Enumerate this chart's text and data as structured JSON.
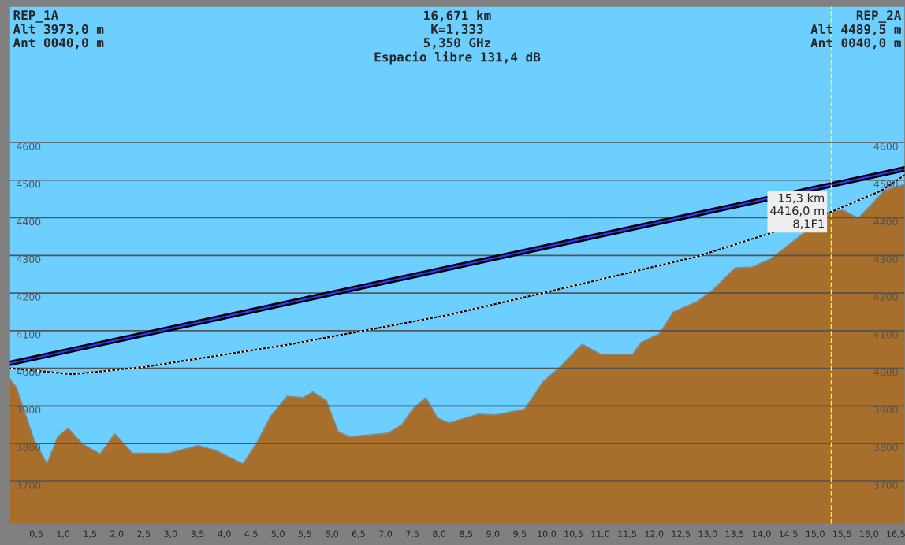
{
  "chart_data": {
    "type": "area",
    "annotations": [
      "REP_1A\nAlt 3973,0 m\nAnt 0040,0 m",
      "16,671 km\nK=1,333\n5,350 GHz\nEspacio libre 131,4 dB",
      "REP_2A\nAlt 4489,5 m\nAnt 0040,0 m",
      {
        "text": "15,3 km\n4416,0 m\n8,1F1",
        "x": 15.3,
        "y": 4416
      }
    ],
    "series": [
      {
        "color": "#a86e2c",
        "x": [
          0,
          0.13,
          0.46,
          0.7,
          0.9,
          1.09,
          1.36,
          1.69,
          1.96,
          2.29,
          2.97,
          3.51,
          3.83,
          4.35,
          4.6,
          4.86,
          5.17,
          5.46,
          5.65,
          5.9,
          6.12,
          6.33,
          7.05,
          7.31,
          7.53,
          7.75,
          7.97,
          8.18,
          8.72,
          9.05,
          9.59,
          9.93,
          10.25,
          10.66,
          11.01,
          11.6,
          11.76,
          12.1,
          12.36,
          12.8,
          13.07,
          13.51,
          13.83,
          14.16,
          15.3,
          15.52,
          15.8,
          16.06,
          16.28,
          16.67
        ],
        "values": [
          3973,
          3949,
          3809,
          3746,
          3818,
          3841,
          3799,
          3772,
          3826,
          3774,
          3774,
          3795,
          3782,
          3746,
          3801,
          3872,
          3926,
          3922,
          3937,
          3914,
          3832,
          3818,
          3828,
          3851,
          3895,
          3922,
          3868,
          3855,
          3878,
          3876,
          3891,
          3964,
          4004,
          4064,
          4037,
          4037,
          4069,
          4092,
          4150,
          4177,
          4205,
          4267,
          4269,
          4290,
          4416,
          4420,
          4399,
          4437,
          4472,
          4489
        ]
      },
      {
        "type": "line",
        "color": "#3333ff",
        "x": [
          0,
          16.671
        ],
        "values": [
          4013,
          4530
        ]
      },
      {
        "type": "line",
        "color": "#ffffff",
        "line_style": "dotted",
        "x": [
          0.03,
          1.17,
          2.53,
          5.24,
          8.18,
          9.81,
          12.8,
          14.16,
          15.27,
          16.23,
          16.67
        ],
        "values": [
          4000,
          3984,
          4004,
          4064,
          4142,
          4196,
          4297,
          4359,
          4414,
          4472,
          4514
        ]
      }
    ],
    "ref_lines": [
      {
        "axis": "x",
        "value": 15.3,
        "color": "#ffff00",
        "line_style": "dashed"
      }
    ],
    "xlim": [
      0,
      16.671
    ],
    "ylim": [
      3587,
      4962
    ],
    "y2lim": [
      3587,
      4962
    ],
    "xticks": [
      {
        "value": 0.5,
        "label": "0,5"
      },
      {
        "value": 1.0,
        "label": "1,0"
      },
      {
        "value": 1.5,
        "label": "1,5"
      },
      {
        "value": 2.0,
        "label": "2,0"
      },
      {
        "value": 2.5,
        "label": "2,5"
      },
      {
        "value": 3.0,
        "label": "3,0"
      },
      {
        "value": 3.5,
        "label": "3,5"
      },
      {
        "value": 4.0,
        "label": "4,0"
      },
      {
        "value": 4.5,
        "label": "4,5"
      },
      {
        "value": 5.0,
        "label": "5,0"
      },
      {
        "value": 5.5,
        "label": "5,5"
      },
      {
        "value": 6.0,
        "label": "6,0"
      },
      {
        "value": 6.5,
        "label": "6,5"
      },
      {
        "value": 7.0,
        "label": "7,0"
      },
      {
        "value": 7.5,
        "label": "7,5"
      },
      {
        "value": 8.0,
        "label": "8,0"
      },
      {
        "value": 8.5,
        "label": "8,5"
      },
      {
        "value": 9.0,
        "label": "9,0"
      },
      {
        "value": 9.5,
        "label": "9,5"
      },
      {
        "value": 10.0,
        "label": "10,0"
      },
      {
        "value": 10.5,
        "label": "10,5"
      },
      {
        "value": 11.0,
        "label": "11,0"
      },
      {
        "value": 11.5,
        "label": "11,5"
      },
      {
        "value": 12.0,
        "label": "12,0"
      },
      {
        "value": 12.5,
        "label": "12,5"
      },
      {
        "value": 13.0,
        "label": "13,0"
      },
      {
        "value": 13.5,
        "label": "13,5"
      },
      {
        "value": 14.0,
        "label": "14,0"
      },
      {
        "value": 14.5,
        "label": "14,5"
      },
      {
        "value": 15.0,
        "label": "15,0"
      },
      {
        "value": 15.5,
        "label": "15,5"
      },
      {
        "value": 16.0,
        "label": "16,0"
      },
      {
        "value": 16.5,
        "label": "16,5"
      }
    ],
    "yticks": [
      3700,
      3800,
      3900,
      4000,
      4100,
      4200,
      4300,
      4400,
      4500,
      4600
    ],
    "y2ticks": [
      3700,
      3800,
      3900,
      4000,
      4100,
      4200,
      4300,
      4400,
      4500,
      4600
    ],
    "grid": "y",
    "legend": false
  }
}
